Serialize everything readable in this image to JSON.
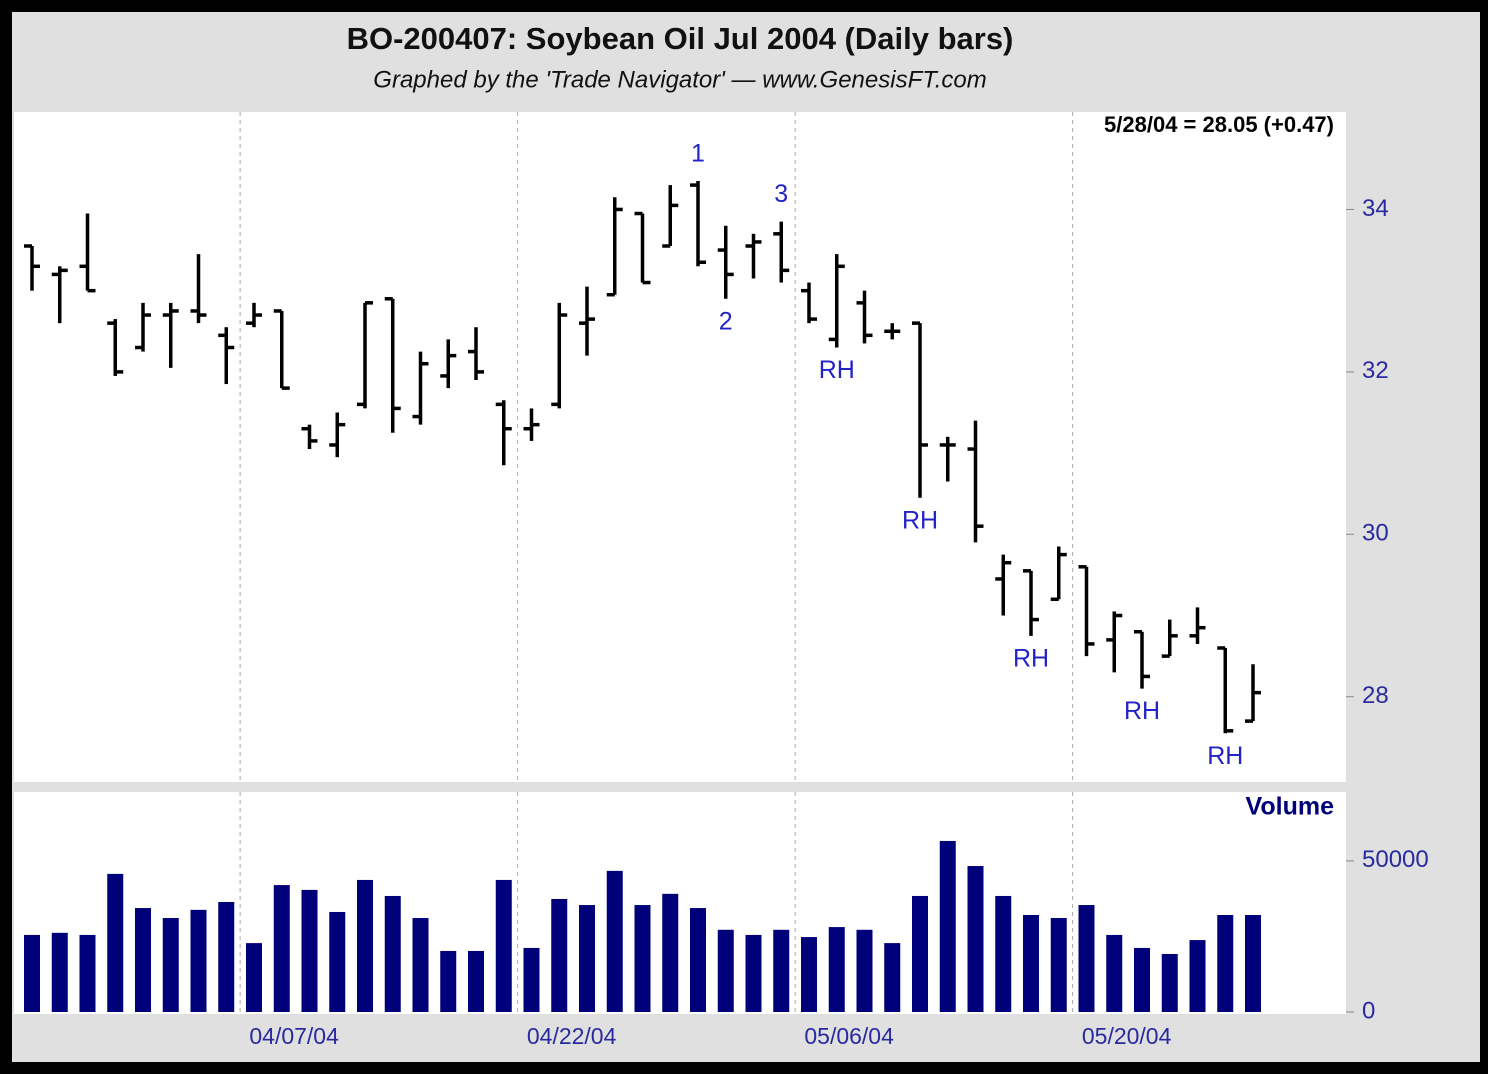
{
  "chart_data": [
    {
      "type": "ohlc",
      "title": "BO-200407:  Soybean Oil Jul 2004  (Daily bars)",
      "subtitle": "Graphed by the 'Trade Navigator'  —  www.GenesisFT.com",
      "last_label": "5/28/04 = 28.05 (+0.47)",
      "categories": [
        null,
        null,
        null,
        null,
        null,
        null,
        null,
        null,
        "04/07/04",
        null,
        null,
        null,
        null,
        null,
        null,
        null,
        null,
        null,
        "04/22/04",
        null,
        null,
        null,
        null,
        null,
        null,
        null,
        null,
        null,
        "05/06/04",
        null,
        null,
        null,
        null,
        null,
        null,
        null,
        null,
        null,
        "05/20/04",
        null,
        null,
        null,
        null,
        null,
        null
      ],
      "open": [
        33.55,
        33.2,
        33.3,
        32.6,
        32.3,
        32.7,
        32.75,
        32.45,
        32.6,
        32.75,
        31.3,
        31.1,
        31.6,
        32.9,
        31.45,
        31.95,
        32.25,
        31.6,
        31.3,
        31.6,
        32.6,
        32.95,
        33.95,
        33.55,
        34.3,
        33.5,
        33.55,
        33.7,
        33.0,
        32.4,
        32.85,
        32.5,
        32.6,
        31.1,
        31.05,
        29.45,
        29.55,
        29.2,
        29.6,
        28.7,
        28.8,
        28.5,
        28.75,
        28.6,
        27.7
      ],
      "high": [
        33.55,
        33.3,
        33.95,
        32.65,
        32.85,
        32.85,
        33.45,
        32.55,
        32.85,
        32.75,
        31.35,
        31.5,
        32.85,
        32.9,
        32.25,
        32.4,
        32.55,
        31.65,
        31.55,
        32.85,
        33.05,
        34.15,
        33.95,
        34.3,
        34.35,
        33.8,
        33.7,
        33.85,
        33.1,
        33.45,
        33.0,
        32.6,
        32.6,
        31.2,
        31.4,
        29.75,
        29.55,
        29.85,
        29.6,
        29.05,
        28.8,
        28.95,
        29.1,
        28.6,
        28.4
      ],
      "low": [
        33.0,
        32.6,
        33.0,
        31.95,
        32.25,
        32.05,
        32.6,
        31.85,
        32.55,
        31.8,
        31.05,
        30.95,
        31.55,
        31.25,
        31.35,
        31.8,
        31.9,
        30.85,
        31.15,
        31.55,
        32.2,
        32.95,
        33.1,
        33.55,
        33.3,
        32.9,
        33.15,
        33.1,
        32.6,
        32.3,
        32.35,
        32.4,
        30.45,
        30.65,
        29.9,
        29.0,
        28.75,
        29.2,
        28.5,
        28.3,
        28.1,
        28.5,
        28.65,
        27.55,
        27.7
      ],
      "close": [
        33.3,
        33.25,
        33.0,
        32.0,
        32.7,
        32.75,
        32.7,
        32.3,
        32.7,
        31.8,
        31.15,
        31.35,
        32.85,
        31.55,
        32.1,
        32.2,
        32.0,
        31.3,
        31.35,
        32.7,
        32.65,
        34.0,
        33.1,
        34.05,
        33.35,
        33.2,
        33.6,
        33.25,
        32.65,
        33.3,
        32.45,
        32.5,
        31.1,
        31.1,
        30.1,
        29.65,
        28.95,
        29.75,
        28.65,
        29.0,
        28.25,
        28.75,
        28.85,
        27.58,
        28.05
      ],
      "color": "#000000",
      "ylim": [
        26.95,
        35.2
      ],
      "yticks": [
        28,
        30,
        32,
        34
      ],
      "annotations": [
        {
          "text": "1",
          "index": 24,
          "position": "above"
        },
        {
          "text": "2",
          "index": 25,
          "position": "below"
        },
        {
          "text": "3",
          "index": 27,
          "position": "above"
        },
        {
          "text": "RH",
          "index": 29,
          "position": "below"
        },
        {
          "text": "RH",
          "index": 32,
          "position": "below"
        },
        {
          "text": "RH",
          "index": 36,
          "position": "below"
        },
        {
          "text": "RH",
          "index": 40,
          "position": "below"
        },
        {
          "text": "RH",
          "index": 43,
          "position": "below"
        }
      ],
      "annotation_color": "#2323c8",
      "grid": true
    },
    {
      "type": "bar",
      "title": "Volume",
      "values": [
        25500,
        26200,
        25500,
        45700,
        34400,
        31100,
        33800,
        36400,
        22800,
        42000,
        40400,
        33100,
        43700,
        38400,
        31100,
        20200,
        20200,
        43700,
        21200,
        37400,
        35400,
        46700,
        35400,
        39100,
        34400,
        27200,
        25500,
        27200,
        24800,
        28100,
        27200,
        22800,
        38400,
        56600,
        48300,
        38400,
        32100,
        31100,
        35400,
        25500,
        21200,
        19200,
        23800,
        32100,
        32100
      ],
      "color": "#00007a",
      "ylim": [
        0,
        72800
      ],
      "yticks": [
        0,
        50000
      ]
    }
  ]
}
